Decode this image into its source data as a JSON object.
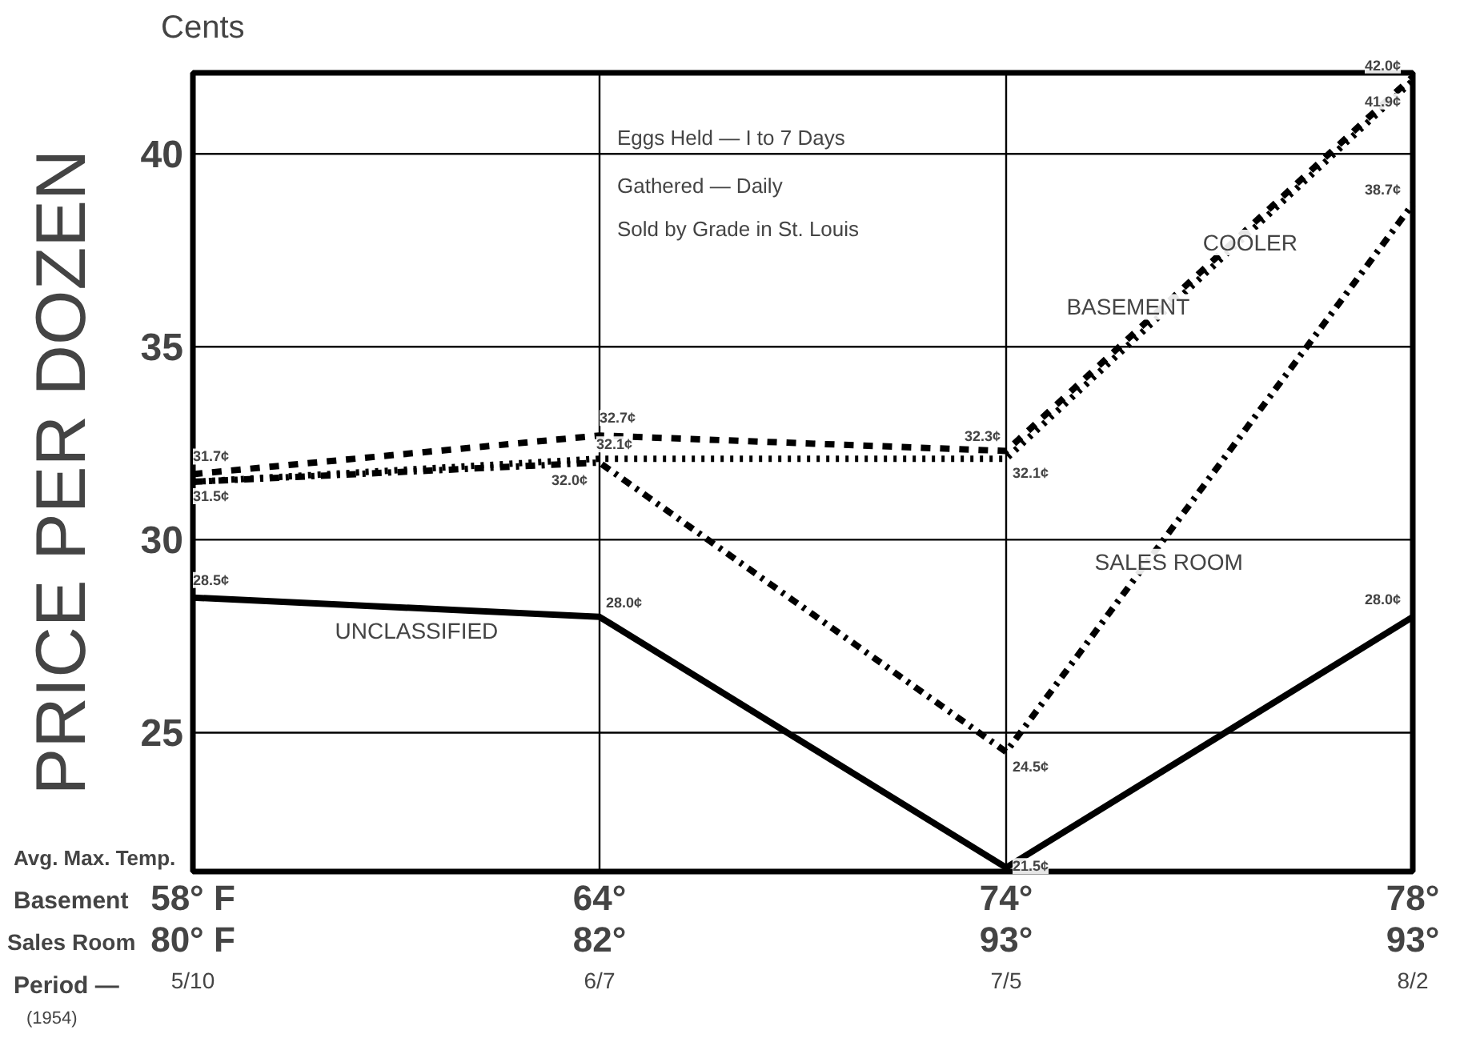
{
  "chart_data": {
    "type": "line",
    "ylabel": "PRICE PER DOZEN",
    "categories": [
      "58° F\n80° F\n5/10",
      "64°\n82°\n6/7",
      "74°\n93°\n7/5",
      "78°\n93°\n8/2"
    ],
    "series": [
      {
        "name": "COOLER",
        "color": "#000000",
        "line_style": "dashed",
        "values": [
          31.7,
          32.7,
          32.3,
          42.0
        ],
        "value_labels": [
          "31.7¢",
          "32.7¢",
          "32.3¢",
          "42.0¢"
        ]
      },
      {
        "name": "BASEMENT",
        "color": "#000000",
        "line_style": "dotted",
        "values": [
          31.5,
          32.1,
          32.1,
          41.9
        ],
        "value_labels": [
          "31.5¢",
          "32.1¢",
          "32.1¢",
          "41.9¢"
        ]
      },
      {
        "name": "SALES ROOM",
        "color": "#000000",
        "line_style": "dashdot",
        "values": [
          31.5,
          32.0,
          24.5,
          38.7
        ],
        "value_labels": [
          null,
          "32.0¢",
          "24.5¢",
          "38.7¢"
        ]
      },
      {
        "name": "UNCLASSIFIED",
        "color": "#000000",
        "line_style": "solid",
        "values": [
          28.5,
          28.0,
          21.5,
          28.0
        ],
        "value_labels": [
          "28.5¢",
          "28.0¢",
          "21.5¢",
          "28.0¢"
        ]
      }
    ],
    "ylim": [
      21.4,
      42.1
    ],
    "yticks": [
      25,
      30,
      35,
      40
    ],
    "grid": true,
    "legend": false,
    "annotations": [
      "Cents",
      "Eggs Held — I to 7 Days",
      "Gathered — Daily",
      "Sold by Grade in St. Louis",
      "Avg. Max. Temp.",
      "Basement",
      "Sales Room",
      "Period —",
      "(1954)"
    ]
  }
}
